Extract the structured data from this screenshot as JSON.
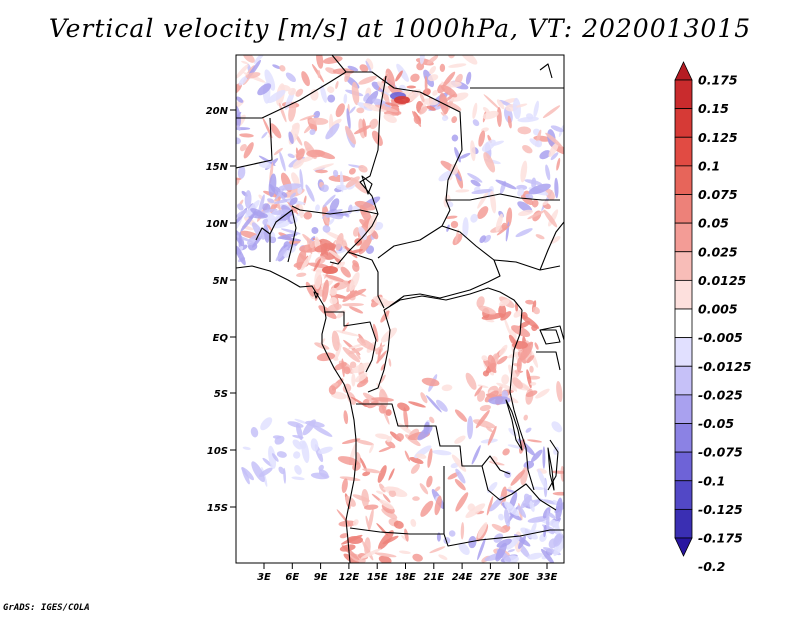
{
  "title": "Vertical velocity [m/s] at 1000hPa, VT: 2020013015",
  "credit": "GrADS: IGES/COLA",
  "map": {
    "lat_labels": [
      "20N",
      "15N",
      "10N",
      "5N",
      "EQ",
      "5S",
      "10S",
      "15S"
    ],
    "lon_labels": [
      "3E",
      "6E",
      "9E",
      "12E",
      "15E",
      "18E",
      "21E",
      "24E",
      "27E",
      "30E",
      "33E"
    ]
  },
  "colorbar": {
    "labels": [
      "0.175",
      "0.15",
      "0.125",
      "0.1",
      "0.075",
      "0.05",
      "0.025",
      "0.0125",
      "0.005",
      "-0.005",
      "-0.0125",
      "-0.025",
      "-0.05",
      "-0.075",
      "-0.1",
      "-0.125",
      "-0.175",
      "-0.2"
    ],
    "colors": [
      "#b41c23",
      "#c92b2d",
      "#d63a36",
      "#e14b43",
      "#e7655a",
      "#ed8179",
      "#f39c96",
      "#f8bdb8",
      "#fde0dd",
      "#ffffff",
      "#e1e0ff",
      "#c6c1f8",
      "#a9a1ef",
      "#8b82e4",
      "#6e63d7",
      "#5248c6",
      "#3a2fb3",
      "#2815a0"
    ]
  }
}
